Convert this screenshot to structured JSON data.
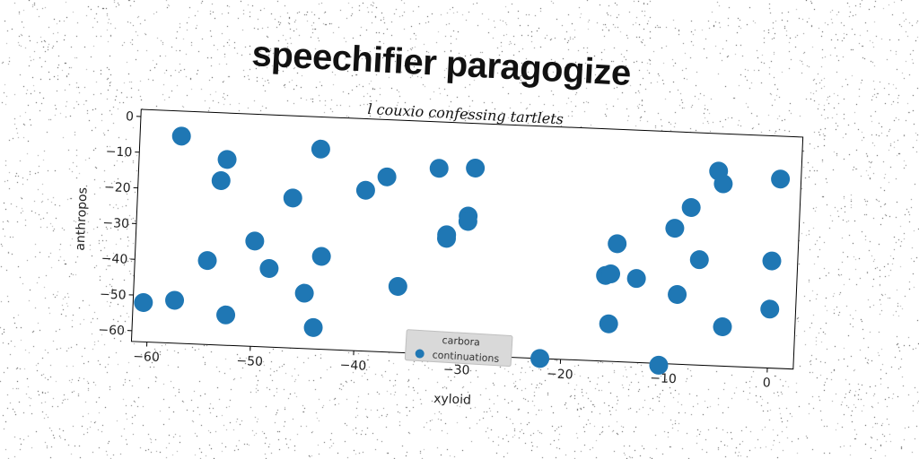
{
  "title": "speechifier paragogize",
  "subtitle": "l couxio confessing tartlets",
  "colors": {
    "series": "#1f77b4",
    "legend_bg": "#d9d9d9"
  },
  "chart_data": {
    "type": "scatter",
    "xlabel": "xyloid",
    "ylabel": "anthropos",
    "xlim": [
      -61.5,
      2.5
    ],
    "ylim": [
      -63,
      2
    ],
    "xticks": [
      -60,
      -50,
      -40,
      -30,
      -20,
      -10,
      0
    ],
    "yticks": [
      0,
      -10,
      -20,
      -30,
      -40,
      -50,
      -60
    ],
    "xtick_labels": [
      "−60",
      "−50",
      "−40",
      "−30",
      "−20",
      "−10",
      "0"
    ],
    "ytick_labels": [
      "0",
      "−10",
      "−20",
      "−30",
      "−40",
      "−50",
      "−60"
    ],
    "legend": {
      "title": "carbora",
      "entries": [
        "continuations"
      ],
      "placement": "lower center"
    },
    "series": [
      {
        "name": "continuations",
        "points": [
          [
            -57.5,
            -5
          ],
          [
            -53,
            -11
          ],
          [
            -53.5,
            -17
          ],
          [
            -44,
            -7
          ],
          [
            -46.5,
            -21
          ],
          [
            -39.5,
            -18
          ],
          [
            -37.5,
            -14
          ],
          [
            -32.5,
            -11
          ],
          [
            -29,
            -10.5
          ],
          [
            -29.5,
            -24
          ],
          [
            -29.5,
            -25.5
          ],
          [
            -31.5,
            -29.5
          ],
          [
            -31.5,
            -30.5
          ],
          [
            -50,
            -33.5
          ],
          [
            -54.5,
            -39.5
          ],
          [
            -48.5,
            -41
          ],
          [
            -43.5,
            -37
          ],
          [
            -36,
            -44.5
          ],
          [
            -45,
            -47.5
          ],
          [
            -60.5,
            -52
          ],
          [
            -57.5,
            -51
          ],
          [
            -52.5,
            -54.5
          ],
          [
            -44,
            -57
          ],
          [
            -22,
            -63
          ],
          [
            -15,
            -30
          ],
          [
            -16,
            -39
          ],
          [
            -15.5,
            -38.5
          ],
          [
            -13,
            -39.5
          ],
          [
            -15.5,
            -52.5
          ],
          [
            -10.5,
            -63.5
          ],
          [
            -9,
            -43.5
          ],
          [
            -9.5,
            -25
          ],
          [
            -8,
            -19
          ],
          [
            -7,
            -33.5
          ],
          [
            -5.5,
            -8.5
          ],
          [
            -5,
            -12
          ],
          [
            -4.5,
            -52
          ],
          [
            0.5,
            -10
          ],
          [
            0,
            -33
          ],
          [
            0,
            -46.5
          ]
        ]
      }
    ]
  }
}
